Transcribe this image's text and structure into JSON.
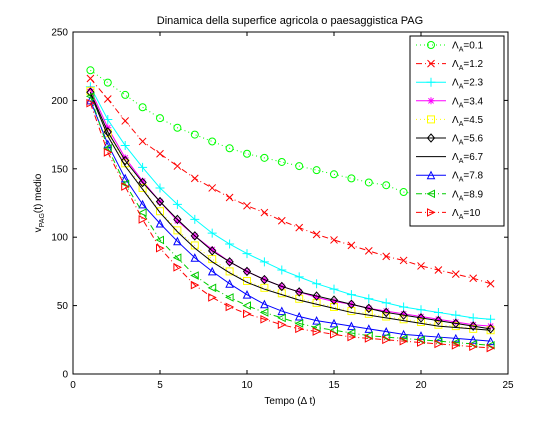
{
  "chart_data": {
    "type": "line",
    "title": "Dinamica della superfice agricola o paesaggistica PAG",
    "xlabel": "Tempo (Δ t)",
    "ylabel": "v",
    "ylabel_sub": "PAG",
    "ylabel_rest": "(t) medio",
    "xlim": [
      0,
      25
    ],
    "ylim": [
      0,
      250
    ],
    "xticks": [
      "0",
      "5",
      "10",
      "15",
      "20",
      "25"
    ],
    "yticks": [
      "0",
      "50",
      "100",
      "150",
      "200",
      "250"
    ],
    "legend_position": "top-right",
    "grid": false,
    "legend_symbol": "Λ",
    "legend_sub": "A",
    "x": [
      1,
      2,
      3,
      4,
      5,
      6,
      7,
      8,
      9,
      10,
      11,
      12,
      13,
      14,
      15,
      16,
      17,
      18,
      19,
      20,
      21,
      22,
      23,
      24
    ],
    "series": [
      {
        "name": "=0.1",
        "color": "#00ff00",
        "marker": "circle",
        "dash": "1,3",
        "values": [
          222,
          213,
          204,
          195,
          187,
          180,
          175,
          170,
          165,
          161,
          158,
          155,
          152,
          149,
          146,
          143,
          140,
          138,
          133,
          131,
          128,
          126,
          124,
          122
        ]
      },
      {
        "name": "=1.2",
        "color": "#ff0000",
        "marker": "x",
        "dash": "6,3,1,3",
        "values": [
          216,
          201,
          185,
          170,
          161,
          152,
          143,
          136,
          129,
          123,
          118,
          112,
          107,
          102,
          98,
          94,
          90,
          86,
          83,
          79,
          76,
          73,
          70,
          66
        ]
      },
      {
        "name": "=2.3",
        "color": "#00ffff",
        "marker": "plus",
        "dash": "",
        "values": [
          210,
          186,
          167,
          151,
          136,
          124,
          113,
          103,
          95,
          88,
          82,
          76,
          71,
          66,
          62,
          58,
          55,
          52,
          49,
          47,
          45,
          43,
          41,
          40
        ]
      },
      {
        "name": "=3.4",
        "color": "#ff00ff",
        "marker": "star",
        "dash": "",
        "values": [
          208,
          180,
          158,
          141,
          126,
          112,
          101,
          91,
          82,
          75,
          69,
          64,
          60,
          56,
          53,
          51,
          48,
          46,
          44,
          42,
          40,
          38,
          36,
          35
        ]
      },
      {
        "name": "=4.5",
        "color": "#ffff00",
        "marker": "square",
        "dash": "1,3",
        "values": [
          207,
          176,
          154,
          136,
          119,
          105,
          94,
          84,
          75,
          68,
          63,
          59,
          55,
          52,
          49,
          46,
          44,
          42,
          40,
          38,
          36,
          35,
          33,
          32
        ]
      },
      {
        "name": "=5.6",
        "color": "#000000",
        "marker": "diamond",
        "dash": "",
        "values": [
          206,
          177,
          156,
          140,
          126,
          113,
          101,
          90,
          82,
          75,
          69,
          64,
          60,
          57,
          54,
          51,
          48,
          45,
          43,
          41,
          39,
          37,
          35,
          33
        ]
      },
      {
        "name": "=6.7",
        "color": "#000000",
        "marker": "none",
        "dash": "",
        "values": [
          205,
          174,
          152,
          135,
          118,
          104,
          92,
          82,
          74,
          67,
          62,
          58,
          54,
          51,
          48,
          45,
          43,
          41,
          39,
          37,
          35,
          34,
          33,
          32
        ]
      },
      {
        "name": "=7.8",
        "color": "#0000ff",
        "marker": "triangle-up",
        "dash": "",
        "values": [
          200,
          168,
          143,
          124,
          110,
          97,
          85,
          75,
          66,
          58,
          51,
          46,
          42,
          39,
          37,
          35,
          33,
          31,
          29,
          28,
          27,
          26,
          25,
          24
        ]
      },
      {
        "name": "=8.9",
        "color": "#00cc00",
        "marker": "triangle-left",
        "dash": "6,3,1,3",
        "values": [
          203,
          165,
          139,
          118,
          98,
          85,
          72,
          63,
          56,
          50,
          45,
          41,
          37,
          34,
          32,
          30,
          28,
          27,
          26,
          25,
          24,
          23,
          22,
          21
        ]
      },
      {
        "name": "=10",
        "color": "#ff0000",
        "marker": "triangle-right",
        "dash": "6,3,1,3",
        "values": [
          198,
          162,
          137,
          113,
          92,
          78,
          65,
          56,
          49,
          44,
          40,
          36,
          33,
          31,
          29,
          27,
          26,
          25,
          24,
          23,
          22,
          21,
          20,
          19
        ]
      }
    ]
  }
}
